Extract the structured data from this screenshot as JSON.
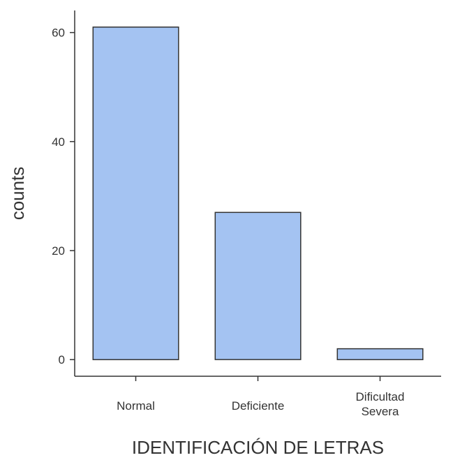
{
  "chart_data": {
    "type": "bar",
    "categories": [
      [
        "Normal"
      ],
      [
        "Deficiente"
      ],
      [
        "Dificultad",
        "Severa"
      ]
    ],
    "values": [
      61,
      27,
      2
    ],
    "xlabel": "IDENTIFICACIÓN DE LETRAS",
    "ylabel": "counts",
    "ylim": [
      -3.05,
      64.05
    ],
    "yticks": [
      0,
      20,
      40,
      60
    ],
    "grid": false,
    "legend": "none",
    "colors": {
      "bar_fill": "#a4c3f2",
      "bar_stroke": "#333333",
      "axis": "#333333"
    }
  }
}
